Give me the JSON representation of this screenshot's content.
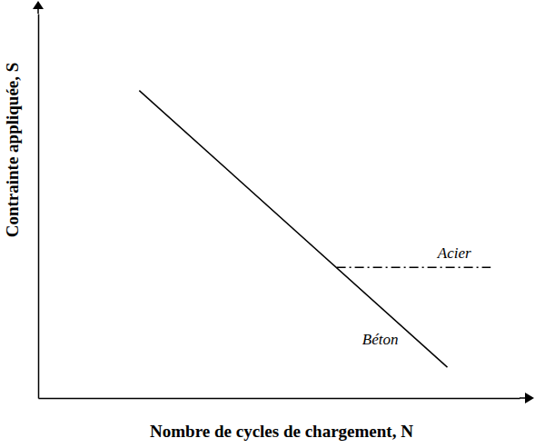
{
  "chart_data": {
    "type": "line",
    "x_label": "Nombre de cycles de chargement, N",
    "y_label": "Contrainte appliquée, S",
    "xlim": [
      0,
      100
    ],
    "ylim": [
      0,
      100
    ],
    "xticks": [],
    "yticks": [],
    "tick_labels": false,
    "grid": false,
    "series": [
      {
        "name": "Béton",
        "color": "#000000",
        "line_style": "solid",
        "x": [
          21,
          85
        ],
        "values": [
          80,
          8
        ]
      },
      {
        "name": "Acier",
        "color": "#000000",
        "line_style": "dashdot",
        "x": [
          62,
          94
        ],
        "values": [
          34,
          34
        ]
      }
    ]
  }
}
